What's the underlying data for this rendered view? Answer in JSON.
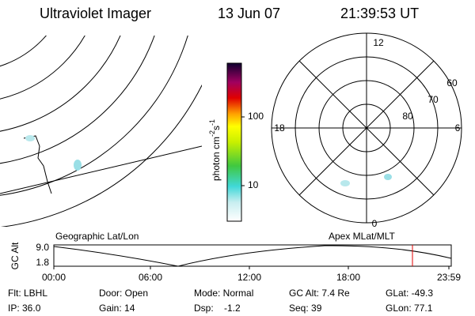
{
  "header": {
    "title": "Ultraviolet Imager",
    "date": "13 Jun 07",
    "time": "21:39:53 UT"
  },
  "colorbar": {
    "unit": [
      "photon cm",
      "-2",
      "s",
      "-1"
    ],
    "labels": [
      "100",
      "10"
    ]
  },
  "polar": {
    "mlt": [
      "12",
      "18",
      "6",
      "0"
    ],
    "mlat": [
      "60",
      "70",
      "80"
    ]
  },
  "timeline": {
    "left_title": "Geographic Lat/Lon",
    "right_title": "Apex MLat/MLT",
    "axis_title": "GC Alt",
    "y_labels": [
      "9.0",
      "1.8"
    ],
    "x_labels": [
      "00:00",
      "06:00",
      "12:00",
      "18:00",
      "23:59"
    ]
  },
  "footer": {
    "rows": [
      [
        "Flt: LBHL",
        "Door: Open",
        "Mode: Normal",
        "GC Alt: 7.4 Re",
        "GLat: -49.3"
      ],
      [
        "IP: 36.0",
        "Gain: 14",
        "Dsp:    -1.2",
        "Seq: 39",
        "GLon: 77.1"
      ]
    ]
  }
}
